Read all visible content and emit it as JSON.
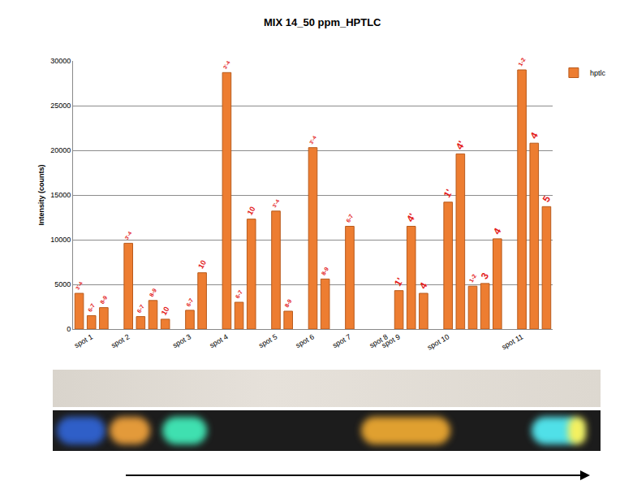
{
  "chart_data": {
    "type": "bar",
    "title": "MIX 14_50 ppm_HPTLC",
    "y_label": "Intensity (counts)",
    "categories": [
      null,
      "spot 1",
      null,
      null,
      "spot 2",
      null,
      null,
      null,
      null,
      "spot 3",
      null,
      null,
      "spot 4",
      null,
      null,
      null,
      "spot 5",
      null,
      null,
      "spot 6",
      null,
      null,
      "spot 7",
      null,
      null,
      "spot 8",
      "spot 9",
      null,
      null,
      null,
      "spot 10",
      null,
      null,
      null,
      null,
      null,
      "spot 11",
      null,
      null
    ],
    "series": [
      {
        "name": "hptlc",
        "color": "#ED7D31",
        "values": [
          4000,
          1500,
          2400,
          null,
          9600,
          1400,
          3200,
          1100,
          null,
          2100,
          6300,
          null,
          28700,
          3000,
          12300,
          null,
          13200,
          2000,
          null,
          20300,
          5600,
          null,
          11500,
          null,
          null,
          null,
          4300,
          11500,
          4000,
          null,
          14200,
          19600,
          4800,
          5100,
          10100,
          null,
          29000,
          20800,
          13700
        ],
        "labels": [
          "3'-4",
          "6-7",
          "8-9",
          null,
          "3'-4",
          "6-7",
          "8-9",
          "10",
          null,
          "6-7",
          "10",
          null,
          "3'-4",
          "6-7",
          "10",
          null,
          "3'-4",
          "8-9",
          null,
          "3'-4",
          "8-9",
          null,
          "6-7",
          null,
          null,
          null,
          "1'",
          "4'",
          "4",
          null,
          "1'",
          "4'",
          "1-2",
          "3",
          "4",
          null,
          "1-2",
          "4",
          "5"
        ]
      }
    ],
    "ylim": [
      0,
      30000
    ],
    "yticks": [
      0,
      5000,
      10000,
      15000,
      20000,
      25000,
      30000
    ],
    "grid": true,
    "legend": "right"
  }
}
